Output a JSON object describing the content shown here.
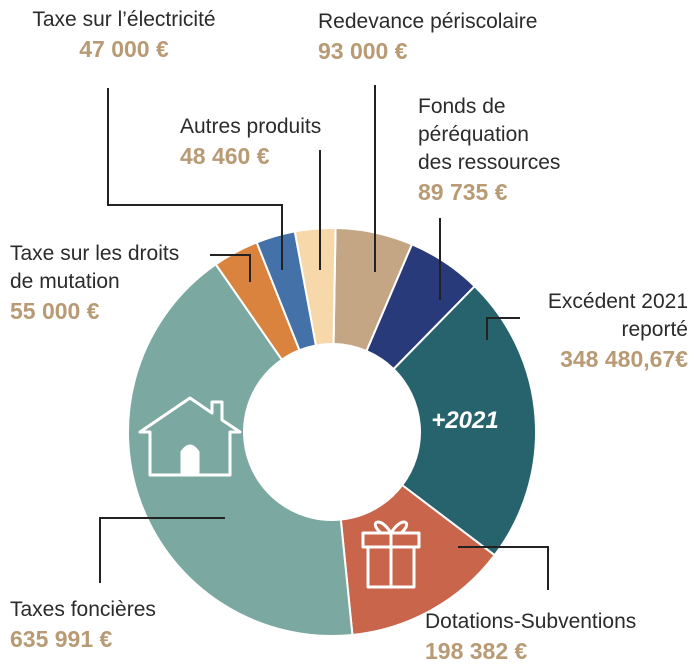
{
  "chart_data": {
    "type": "pie",
    "categories": [
      "Redevance périscolaire",
      "Fonds de\npéréquation\ndes ressources",
      "Excédent 2021\nreporté",
      "Dotations-Subventions",
      "Taxes foncières",
      "Taxe sur les droits\nde mutation",
      "Taxe sur l’électricité",
      "Autres produits"
    ],
    "values": [
      93000,
      89735,
      348480.67,
      198382,
      635991,
      55000,
      47000,
      48460
    ],
    "value_labels": [
      "93 000 €",
      "89 735 €",
      "348 480,67€",
      "198 382 €",
      "635 991 €",
      "55 000 €",
      "47 000 €",
      "48 460 €"
    ],
    "colors": [
      "#c4a584",
      "#283a7a",
      "#27636c",
      "#c8654a",
      "#7ba8a0",
      "#d9833f",
      "#4472a8",
      "#f7d8aa"
    ],
    "annotations": [
      "+2021"
    ]
  }
}
